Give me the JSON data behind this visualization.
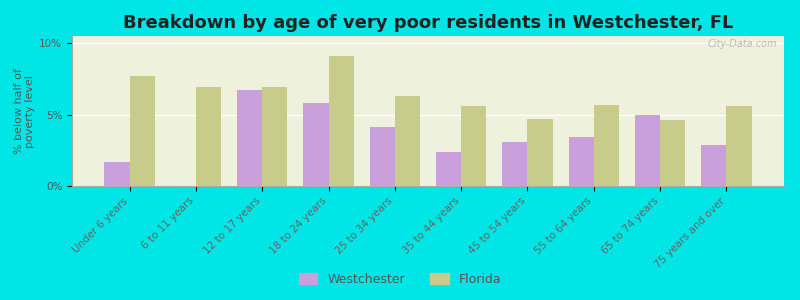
{
  "title": "Breakdown by age of very poor residents in Westchester, FL",
  "ylabel": "% below half of\npoverty level",
  "categories": [
    "Under 6 years",
    "6 to 11 years",
    "12 to 17 years",
    "18 to 24 years",
    "25 to 34 years",
    "35 to 44 years",
    "45 to 54 years",
    "55 to 64 years",
    "65 to 74 years",
    "75 years and over"
  ],
  "westchester": [
    1.7,
    0.0,
    6.7,
    5.8,
    4.1,
    2.4,
    3.1,
    3.4,
    5.0,
    2.9
  ],
  "florida": [
    7.7,
    6.9,
    6.9,
    9.1,
    6.3,
    5.6,
    4.7,
    5.7,
    4.6,
    5.6
  ],
  "westchester_color": "#c9a0dc",
  "florida_color": "#c8cc8a",
  "background_outer": "#00e5e5",
  "background_plot": "#eef2dc",
  "ylim": [
    0,
    10.5
  ],
  "yticks": [
    0,
    5,
    10
  ],
  "ytick_labels": [
    "0%",
    "5%",
    "10%"
  ],
  "title_fontsize": 13,
  "axis_label_fontsize": 8,
  "tick_label_fontsize": 7.5,
  "legend_fontsize": 9,
  "bar_width": 0.38
}
